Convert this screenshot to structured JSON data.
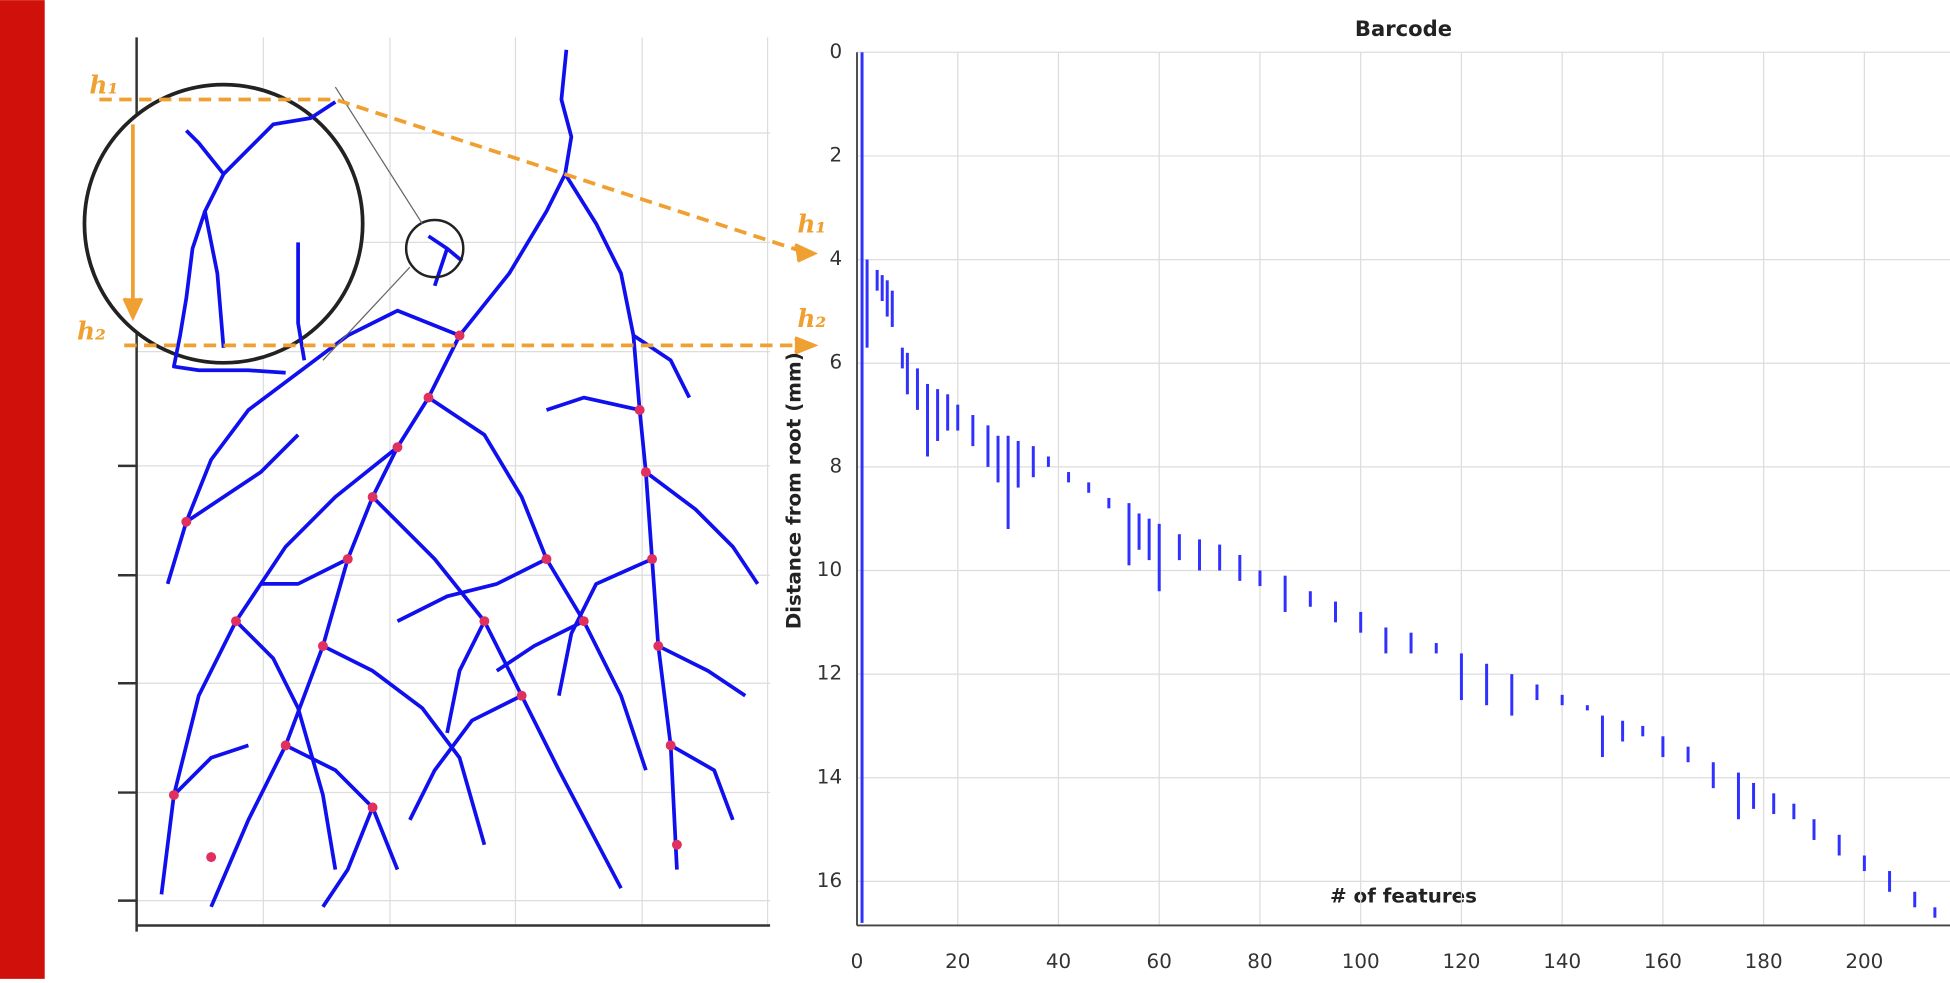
{
  "chart_data": {
    "type": "barcode",
    "title": "Barcode",
    "xlabel": "# of features",
    "ylabel": "Distance from root (mm)",
    "annotations": [
      "h₁",
      "h₂",
      "h₁",
      "h₂"
    ],
    "color": "#3030ff",
    "grid": true,
    "xlim": [
      0,
      217
    ],
    "ylim": [
      0,
      16.85
    ],
    "y_reversed": true,
    "xticks": [
      0,
      20,
      40,
      60,
      80,
      100,
      120,
      140,
      160,
      180,
      200
    ],
    "yticks": [
      0,
      2,
      4,
      6,
      8,
      10,
      12,
      14,
      16
    ],
    "x": [
      1,
      2,
      4,
      5,
      6,
      7,
      9,
      10,
      12,
      14,
      16,
      18,
      20,
      23,
      26,
      28,
      30,
      32,
      35,
      38,
      42,
      46,
      50,
      54,
      56,
      58,
      60,
      64,
      68,
      72,
      76,
      80,
      85,
      90,
      95,
      100,
      105,
      110,
      115,
      120,
      125,
      130,
      135,
      140,
      145,
      148,
      152,
      156,
      160,
      165,
      170,
      175,
      178,
      182,
      186,
      190,
      195,
      200,
      205,
      210,
      214
    ],
    "birth": [
      0,
      4.0,
      4.2,
      4.3,
      4.4,
      4.6,
      5.7,
      5.8,
      6.1,
      6.4,
      6.5,
      6.6,
      6.8,
      7.0,
      7.2,
      7.4,
      7.4,
      7.5,
      7.6,
      7.8,
      8.1,
      8.3,
      8.6,
      8.7,
      8.9,
      9.0,
      9.1,
      9.3,
      9.4,
      9.5,
      9.7,
      10.0,
      10.1,
      10.4,
      10.6,
      10.8,
      11.1,
      11.2,
      11.4,
      11.6,
      11.8,
      12.0,
      12.2,
      12.4,
      12.6,
      12.8,
      12.9,
      13.0,
      13.2,
      13.4,
      13.7,
      13.9,
      14.1,
      14.3,
      14.5,
      14.8,
      15.1,
      15.5,
      15.8,
      16.2,
      16.5
    ],
    "death": [
      16.8,
      5.7,
      4.6,
      4.8,
      5.1,
      5.3,
      6.1,
      6.6,
      6.9,
      7.8,
      7.5,
      7.3,
      7.3,
      7.6,
      8.0,
      8.3,
      9.2,
      8.4,
      8.2,
      8.0,
      8.3,
      8.5,
      8.8,
      9.9,
      9.6,
      9.8,
      10.4,
      9.8,
      10.0,
      10.0,
      10.2,
      10.3,
      10.8,
      10.7,
      11.0,
      11.2,
      11.6,
      11.6,
      11.6,
      12.5,
      12.6,
      12.8,
      12.5,
      12.6,
      12.7,
      13.6,
      13.3,
      13.2,
      13.6,
      13.7,
      14.2,
      14.8,
      14.6,
      14.7,
      14.8,
      15.2,
      15.5,
      15.8,
      16.2,
      16.5,
      16.7
    ]
  }
}
